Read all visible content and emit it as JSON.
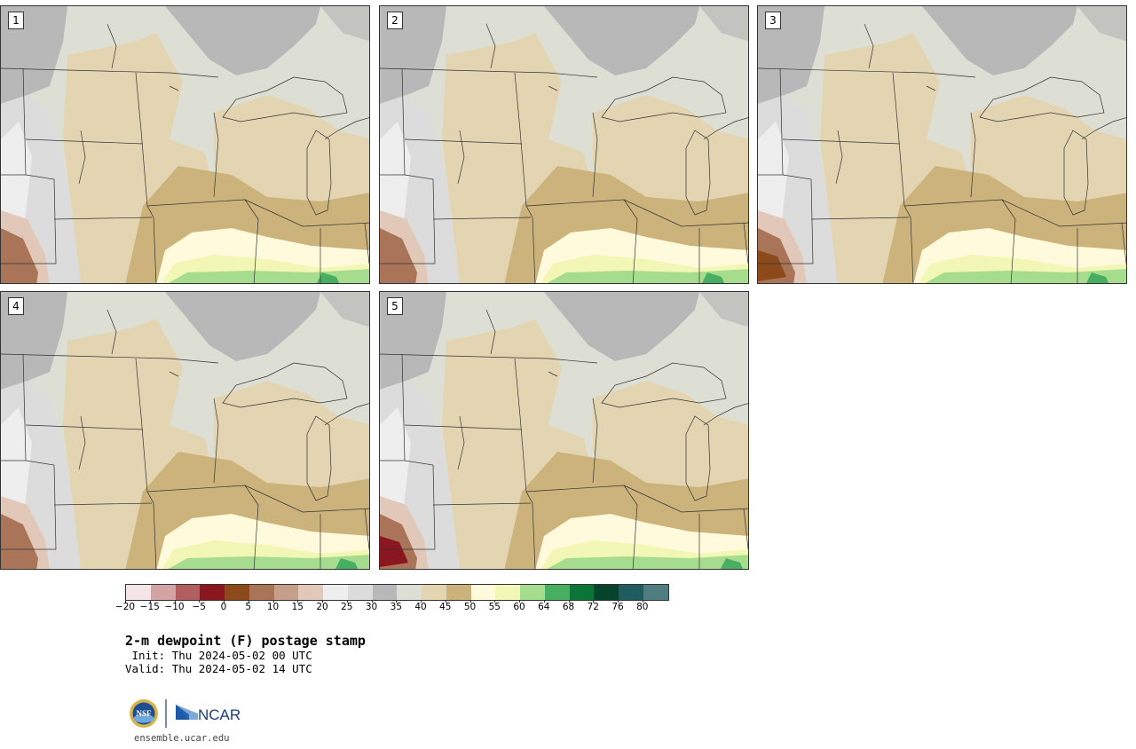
{
  "panels": [
    {
      "label": "1"
    },
    {
      "label": "2"
    },
    {
      "label": "3"
    },
    {
      "label": "4"
    },
    {
      "label": "5"
    }
  ],
  "colorbar": {
    "colors": [
      "#f4e6e6",
      "#d4a3a3",
      "#b25d5f",
      "#8a1620",
      "#8c4a1a",
      "#a97458",
      "#c69f8a",
      "#e2c8b8",
      "#eeeeee",
      "#dcdcdc",
      "#b8b8b8",
      "#dedfd4",
      "#e3d5b2",
      "#cbb37b",
      "#fefadb",
      "#f2f7b5",
      "#a6dc8e",
      "#47ae62",
      "#0b7437",
      "#06432c",
      "#205b60",
      "#4f7d80"
    ],
    "ticks": [
      "−20",
      "−15",
      "−10",
      "−5",
      "0",
      "5",
      "10",
      "15",
      "20",
      "25",
      "30",
      "35",
      "40",
      "45",
      "50",
      "55",
      "60",
      "64",
      "68",
      "72",
      "76",
      "80"
    ]
  },
  "title": "2-m dewpoint (F) postage stamp",
  "init": " Init: Thu 2024-05-02 00 UTC",
  "valid": "Valid: Thu 2024-05-02 14 UTC",
  "logos": {
    "nsf": "NSF",
    "ncar": "NCAR"
  },
  "site": "ensemble.ucar.edu"
}
